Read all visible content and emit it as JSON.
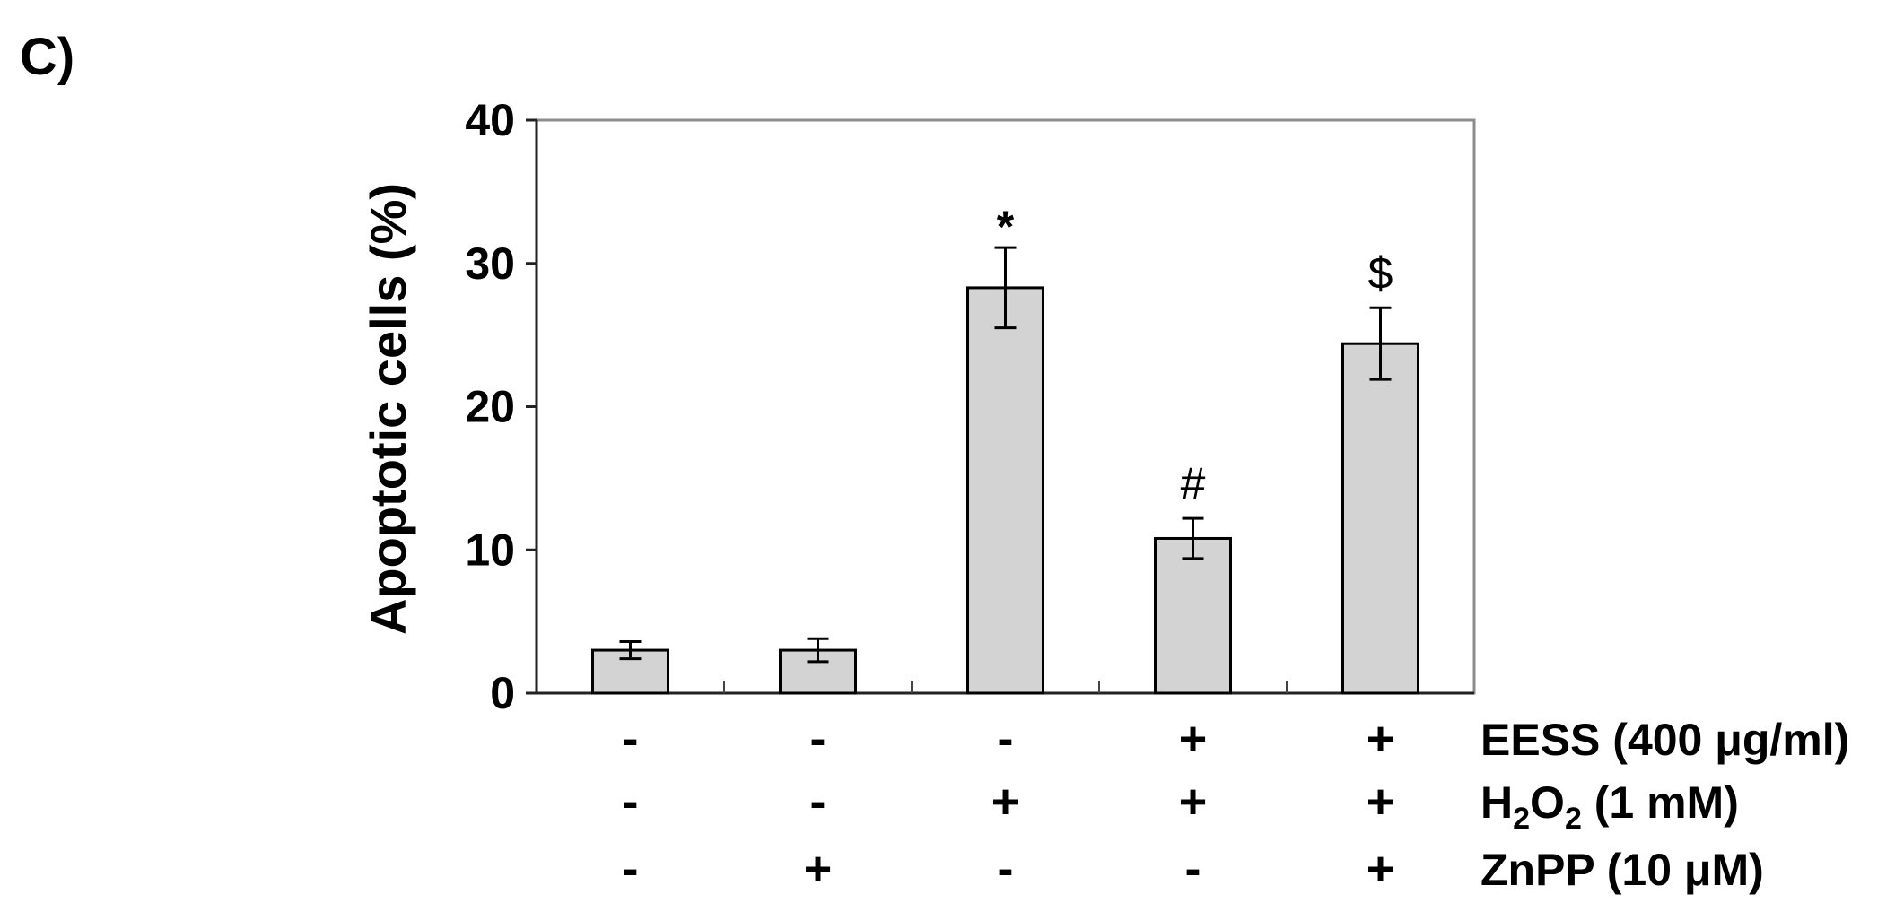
{
  "panel_label": "C)",
  "chart_data": {
    "type": "bar",
    "ylabel": "Apoptotic cells (%)",
    "ylim": [
      0,
      40
    ],
    "yticks": [
      0,
      10,
      20,
      30,
      40
    ],
    "grid": false,
    "values": [
      3.0,
      3.0,
      28.3,
      10.8,
      24.4
    ],
    "errors": [
      0.6,
      0.8,
      2.8,
      1.4,
      2.5
    ],
    "annotations": [
      "",
      "",
      "*",
      "#",
      "$"
    ],
    "bar_color": "#d3d3d3",
    "treatments": [
      {
        "label": "EESS (400 μg/ml)",
        "signs": [
          "-",
          "-",
          "-",
          "+",
          "+"
        ]
      },
      {
        "label_main": "H",
        "label_sub1": "2",
        "label_mid": "O",
        "label_sub2": "2",
        "label_rest": " (1 mM)",
        "signs": [
          "-",
          "-",
          "+",
          "+",
          "+"
        ]
      },
      {
        "label": "ZnPP (10 μM)",
        "signs": [
          "-",
          "+",
          "-",
          "-",
          "+"
        ]
      }
    ]
  }
}
